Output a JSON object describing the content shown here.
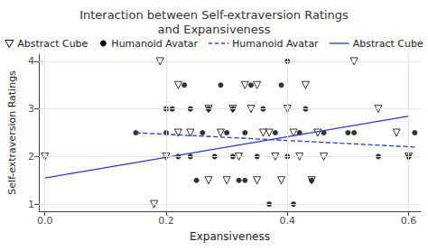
{
  "chart_data": {
    "type": "scatter",
    "title": "Interaction between Self-extraversion Ratings\nand Expansiveness",
    "x_label": "Expansiveness",
    "y_label": "Self-extraversion Ratings",
    "xlim": [
      -0.01,
      0.62
    ],
    "xticks": [
      {
        "value": 0,
        "label": "0.0"
      },
      0.2,
      0.4,
      0.6
    ],
    "ylim": [
      0.85,
      4.15
    ],
    "yticks": [
      1,
      2,
      3,
      4
    ],
    "grid": true,
    "legend": "top",
    "series": [
      {
        "name": "Abstract Cube",
        "type": "scatter",
        "marker": "open-triangle-down",
        "color": "#000000",
        "x": [
          0.0,
          0.19,
          0.18,
          0.22,
          0.2,
          0.24,
          0.27,
          0.29,
          0.31,
          0.33,
          0.35,
          0.36,
          0.37,
          0.38,
          0.39,
          0.4,
          0.41,
          0.42,
          0.43,
          0.45,
          0.46,
          0.51,
          0.55,
          0.58,
          0.6,
          0.27,
          0.32,
          0.35,
          0.44,
          0.22,
          0.34,
          0.3
        ],
        "values": [
          2.0,
          4.0,
          1.0,
          3.5,
          2.0,
          2.5,
          1.5,
          2.5,
          3.0,
          3.5,
          3.5,
          2.5,
          2.5,
          2.0,
          1.5,
          3.0,
          2.5,
          2.0,
          3.5,
          2.5,
          2.0,
          4.0,
          3.0,
          2.5,
          2.0,
          3.0,
          2.0,
          1.5,
          1.5,
          2.5,
          3.0,
          1.5
        ]
      },
      {
        "name": "Humanoid Avatar",
        "type": "scatter",
        "marker": "circle",
        "color": "#000000",
        "x": [
          0.15,
          0.2,
          0.2,
          0.21,
          0.22,
          0.23,
          0.24,
          0.25,
          0.26,
          0.27,
          0.28,
          0.29,
          0.3,
          0.31,
          0.31,
          0.32,
          0.33,
          0.34,
          0.35,
          0.36,
          0.37,
          0.38,
          0.39,
          0.4,
          0.41,
          0.42,
          0.43,
          0.44,
          0.46,
          0.5,
          0.51,
          0.55,
          0.6,
          0.61,
          0.4,
          0.24,
          0.33
        ],
        "values": [
          2.5,
          3.0,
          2.5,
          3.0,
          2.0,
          3.5,
          3.0,
          1.5,
          2.5,
          3.0,
          2.0,
          3.5,
          2.5,
          2.0,
          3.0,
          1.5,
          2.5,
          3.5,
          2.0,
          3.0,
          1.0,
          2.5,
          3.5,
          2.0,
          1.0,
          2.5,
          3.0,
          1.5,
          2.5,
          2.5,
          2.5,
          2.0,
          2.0,
          2.5,
          4.0,
          2.0,
          1.5
        ]
      },
      {
        "name": "Humanoid Avatar",
        "type": "line",
        "line_style": "dashed",
        "color": "#2b3bcc",
        "x": [
          0.15,
          0.61
        ],
        "values": [
          2.5,
          2.2
        ]
      },
      {
        "name": "Abstract Cube",
        "type": "line",
        "line_style": "solid",
        "color": "#2b3bcc",
        "x": [
          0.0,
          0.6
        ],
        "values": [
          1.55,
          2.85
        ]
      }
    ]
  }
}
